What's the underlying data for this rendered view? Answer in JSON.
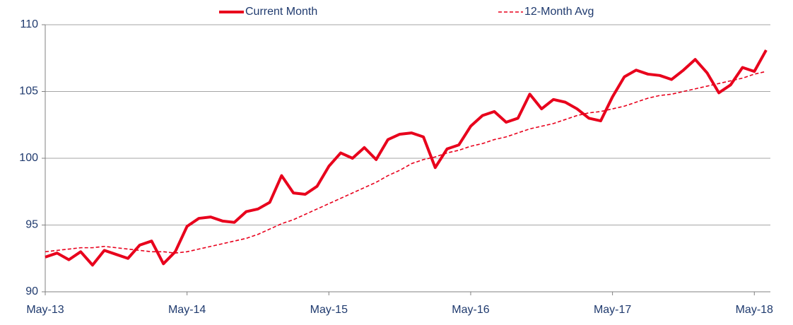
{
  "chart_data": {
    "type": "line",
    "categories": [
      "May-13",
      null,
      null,
      null,
      null,
      null,
      null,
      null,
      null,
      null,
      null,
      null,
      "May-14",
      null,
      null,
      null,
      null,
      null,
      null,
      null,
      null,
      null,
      null,
      null,
      "May-15",
      null,
      null,
      null,
      null,
      null,
      null,
      null,
      null,
      null,
      null,
      null,
      "May-16",
      null,
      null,
      null,
      null,
      null,
      null,
      null,
      null,
      null,
      null,
      null,
      "May-17",
      null,
      null,
      null,
      null,
      null,
      null,
      null,
      null,
      null,
      null,
      null,
      "May-18",
      null
    ],
    "series": [
      {
        "name": "Current Month",
        "color": "#e8001c",
        "dashed": false,
        "values": [
          92.6,
          92.9,
          92.4,
          93.0,
          92.0,
          93.1,
          92.8,
          92.5,
          93.5,
          93.8,
          92.1,
          93.0,
          94.9,
          95.5,
          95.6,
          95.3,
          95.2,
          96.0,
          96.2,
          96.7,
          98.7,
          97.4,
          97.3,
          97.9,
          99.4,
          100.4,
          100.0,
          100.8,
          99.9,
          101.4,
          101.8,
          101.9,
          101.6,
          99.3,
          100.7,
          101.0,
          102.4,
          103.2,
          103.5,
          102.7,
          103.0,
          104.8,
          103.7,
          104.4,
          104.2,
          103.7,
          103.0,
          102.8,
          104.6,
          106.1,
          106.6,
          106.3,
          106.2,
          105.9,
          106.6,
          107.4,
          106.4,
          104.9,
          105.5,
          106.8,
          106.5,
          108.1
        ]
      },
      {
        "name": "12-Month Avg",
        "color": "#e8001c",
        "dashed": true,
        "values": [
          93.0,
          93.1,
          93.2,
          93.3,
          93.3,
          93.4,
          93.3,
          93.2,
          93.1,
          93.0,
          93.0,
          92.9,
          93.0,
          93.2,
          93.4,
          93.6,
          93.8,
          94.0,
          94.3,
          94.7,
          95.1,
          95.4,
          95.8,
          96.2,
          96.6,
          97.0,
          97.4,
          97.8,
          98.2,
          98.7,
          99.1,
          99.6,
          99.9,
          100.1,
          100.4,
          100.6,
          100.9,
          101.1,
          101.4,
          101.6,
          101.9,
          102.2,
          102.4,
          102.6,
          102.9,
          103.2,
          103.4,
          103.5,
          103.7,
          103.9,
          104.2,
          104.5,
          104.7,
          104.8,
          105.0,
          105.2,
          105.4,
          105.6,
          105.8,
          106.0,
          106.3,
          106.5
        ]
      }
    ],
    "ylim": [
      90,
      110
    ],
    "yticks": [
      90,
      95,
      100,
      105,
      110
    ],
    "grid": true,
    "legend": "top"
  }
}
